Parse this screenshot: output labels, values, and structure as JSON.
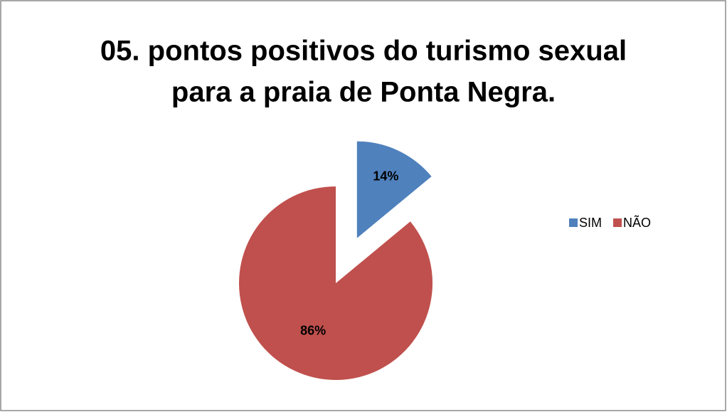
{
  "chart_data": {
    "type": "pie",
    "title": [
      "05. pontos positivos do turismo sexual",
      "para a praia de Ponta Negra."
    ],
    "categories": [
      "SIM",
      "NÃO"
    ],
    "values": [
      14,
      86
    ],
    "value_labels": [
      "14%",
      "86%"
    ],
    "colors": [
      "#4f81bd",
      "#c0504d"
    ],
    "legend": "right"
  }
}
